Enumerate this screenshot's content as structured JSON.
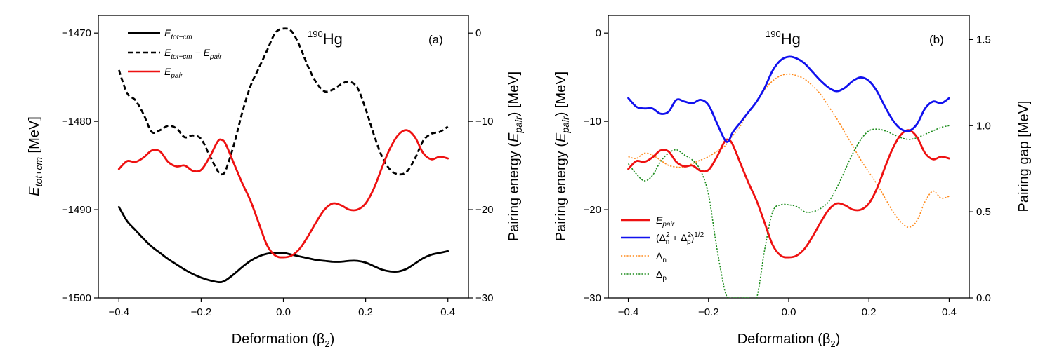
{
  "chart_data": [
    {
      "panel": "(a)",
      "nucleus": {
        "mass": "190",
        "symbol": "Hg"
      },
      "type": "line",
      "xlabel": {
        "main": "Deformation (β",
        "sub": "2",
        "end": ")"
      },
      "xlim": [
        -0.45,
        0.45
      ],
      "xticks": [
        "−0.4",
        "−0.2",
        "0.0",
        "0.2",
        "0.4"
      ],
      "y_left": {
        "label": {
          "main": "E",
          "sub": "tot+cm",
          "end": " [MeV]"
        },
        "lim": [
          -1500,
          -1468
        ],
        "ticks": [
          "−1500",
          "−1490",
          "−1480",
          "−1470"
        ]
      },
      "y_right": {
        "label": {
          "main": "Pairing energy (",
          "italic": "E",
          "sub": "pair",
          "end": ") [MeV]"
        },
        "lim": [
          -30,
          2
        ],
        "ticks": [
          "−30",
          "−20",
          "−10",
          "0"
        ]
      },
      "legend": {
        "position": "top-left",
        "entries": [
          {
            "series": "etot",
            "main": "E",
            "sub": "tot+cm",
            "rest": ""
          },
          {
            "series": "etot_minus_epair",
            "main": "E",
            "sub": "tot+cm",
            "rest": " − E",
            "sub2": "pair"
          },
          {
            "series": "epair",
            "main": "E",
            "sub": "pair",
            "rest": ""
          }
        ]
      },
      "series": [
        {
          "id": "etot",
          "name": "E_tot+cm",
          "axis": "left",
          "color": "#000000",
          "style": "solid",
          "x": [
            -0.4,
            -0.38,
            -0.36,
            -0.34,
            -0.32,
            -0.3,
            -0.28,
            -0.26,
            -0.24,
            -0.22,
            -0.2,
            -0.18,
            -0.16,
            -0.15,
            -0.14,
            -0.12,
            -0.1,
            -0.08,
            -0.06,
            -0.04,
            -0.02,
            0.0,
            0.02,
            0.04,
            0.06,
            0.08,
            0.1,
            0.12,
            0.14,
            0.16,
            0.18,
            0.2,
            0.22,
            0.24,
            0.26,
            0.28,
            0.3,
            0.32,
            0.34,
            0.36,
            0.38,
            0.4
          ],
          "y": [
            -1489.7,
            -1491.3,
            -1492.3,
            -1493.3,
            -1494.2,
            -1494.9,
            -1495.6,
            -1496.2,
            -1496.8,
            -1497.3,
            -1497.7,
            -1498.0,
            -1498.2,
            -1498.2,
            -1498.0,
            -1497.3,
            -1496.5,
            -1495.8,
            -1495.3,
            -1495.0,
            -1494.9,
            -1494.9,
            -1495.1,
            -1495.3,
            -1495.5,
            -1495.7,
            -1495.8,
            -1495.9,
            -1495.9,
            -1495.8,
            -1495.8,
            -1496.0,
            -1496.4,
            -1496.8,
            -1497.0,
            -1497.0,
            -1496.7,
            -1496.1,
            -1495.5,
            -1495.1,
            -1494.9,
            -1494.7
          ]
        },
        {
          "id": "etot_minus_epair",
          "name": "E_tot+cm − E_pair",
          "axis": "left",
          "color": "#000000",
          "style": "dashed",
          "x": [
            -0.4,
            -0.38,
            -0.36,
            -0.34,
            -0.32,
            -0.3,
            -0.28,
            -0.26,
            -0.24,
            -0.22,
            -0.2,
            -0.18,
            -0.16,
            -0.15,
            -0.14,
            -0.12,
            -0.1,
            -0.08,
            -0.06,
            -0.04,
            -0.02,
            0.0,
            0.02,
            0.04,
            0.06,
            0.08,
            0.1,
            0.12,
            0.14,
            0.16,
            0.18,
            0.2,
            0.22,
            0.24,
            0.26,
            0.28,
            0.3,
            0.32,
            0.34,
            0.36,
            0.38,
            0.4
          ],
          "y": [
            -1474.2,
            -1476.8,
            -1477.6,
            -1479.2,
            -1481.2,
            -1481.0,
            -1480.5,
            -1480.8,
            -1481.8,
            -1481.6,
            -1482.0,
            -1483.8,
            -1485.6,
            -1486.0,
            -1485.5,
            -1482.6,
            -1479.0,
            -1476.0,
            -1474.0,
            -1472.0,
            -1470.0,
            -1469.5,
            -1469.8,
            -1471.5,
            -1473.8,
            -1475.6,
            -1476.6,
            -1476.4,
            -1475.8,
            -1475.5,
            -1476.2,
            -1478.6,
            -1481.5,
            -1484.0,
            -1485.5,
            -1486.0,
            -1485.7,
            -1484.2,
            -1482.2,
            -1481.4,
            -1481.2,
            -1480.6
          ]
        },
        {
          "id": "epair",
          "name": "E_pair",
          "axis": "right",
          "color": "#ee1111",
          "style": "solid",
          "x": [
            -0.4,
            -0.38,
            -0.36,
            -0.34,
            -0.32,
            -0.3,
            -0.28,
            -0.26,
            -0.24,
            -0.22,
            -0.2,
            -0.18,
            -0.16,
            -0.15,
            -0.14,
            -0.12,
            -0.1,
            -0.08,
            -0.06,
            -0.04,
            -0.02,
            0.0,
            0.02,
            0.04,
            0.06,
            0.08,
            0.1,
            0.12,
            0.14,
            0.16,
            0.18,
            0.2,
            0.22,
            0.24,
            0.26,
            0.28,
            0.3,
            0.32,
            0.34,
            0.36,
            0.38,
            0.4
          ],
          "y": [
            -15.4,
            -14.5,
            -14.6,
            -14.1,
            -13.3,
            -13.4,
            -14.6,
            -15.1,
            -15.0,
            -15.6,
            -15.5,
            -14.1,
            -12.3,
            -12.1,
            -12.6,
            -14.8,
            -17.0,
            -19.0,
            -21.5,
            -24.0,
            -25.2,
            -25.4,
            -25.2,
            -24.4,
            -23.0,
            -21.4,
            -20.0,
            -19.3,
            -19.5,
            -20.0,
            -20.0,
            -19.3,
            -17.6,
            -15.2,
            -13.0,
            -11.5,
            -11.0,
            -11.8,
            -13.6,
            -14.3,
            -14.0,
            -14.2
          ]
        }
      ]
    },
    {
      "panel": "(b)",
      "nucleus": {
        "mass": "190",
        "symbol": "Hg"
      },
      "type": "line",
      "xlabel": {
        "main": "Deformation (β",
        "sub": "2",
        "end": ")"
      },
      "xlim": [
        -0.45,
        0.45
      ],
      "xticks": [
        "−0.4",
        "−0.2",
        "0.0",
        "0.2",
        "0.4"
      ],
      "y_left": {
        "label": {
          "main": "Pairing energy (",
          "italic": "E",
          "sub": "pair",
          "end": ") [MeV]"
        },
        "lim": [
          -30,
          2
        ],
        "ticks": [
          "−30",
          "−20",
          "−10",
          "0"
        ]
      },
      "y_right": {
        "label": {
          "main": "Pairing gap [MeV]"
        },
        "lim": [
          0,
          1.64
        ],
        "ticks": [
          "0.0",
          "0.5",
          "1.0",
          "1.5"
        ]
      },
      "legend": {
        "position": "bottom-left",
        "entries": [
          {
            "series": "epair_b",
            "kind": "epair",
            "main": "E",
            "sub": "pair"
          },
          {
            "series": "gap_total",
            "kind": "total",
            "text": "(Δ + Δ)"
          },
          {
            "series": "gap_n",
            "kind": "delta",
            "main": "Δ",
            "sub": "n"
          },
          {
            "series": "gap_p",
            "kind": "delta",
            "main": "Δ",
            "sub": "p"
          }
        ]
      },
      "series": [
        {
          "id": "epair_b",
          "name": "E_pair",
          "axis": "left",
          "color": "#ee1111",
          "style": "solid",
          "x": [
            -0.4,
            -0.38,
            -0.36,
            -0.34,
            -0.32,
            -0.3,
            -0.28,
            -0.26,
            -0.24,
            -0.22,
            -0.2,
            -0.18,
            -0.16,
            -0.15,
            -0.14,
            -0.12,
            -0.1,
            -0.08,
            -0.06,
            -0.04,
            -0.02,
            0.0,
            0.02,
            0.04,
            0.06,
            0.08,
            0.1,
            0.12,
            0.14,
            0.16,
            0.18,
            0.2,
            0.22,
            0.24,
            0.26,
            0.28,
            0.3,
            0.32,
            0.34,
            0.36,
            0.38,
            0.4
          ],
          "y": [
            -15.4,
            -14.5,
            -14.6,
            -14.1,
            -13.3,
            -13.4,
            -14.6,
            -15.1,
            -15.0,
            -15.6,
            -15.5,
            -14.1,
            -12.3,
            -12.1,
            -12.6,
            -14.8,
            -17.0,
            -19.0,
            -21.5,
            -24.0,
            -25.2,
            -25.4,
            -25.2,
            -24.4,
            -23.0,
            -21.4,
            -20.0,
            -19.3,
            -19.5,
            -20.0,
            -20.0,
            -19.3,
            -17.6,
            -15.2,
            -13.0,
            -11.5,
            -11.0,
            -11.8,
            -13.6,
            -14.3,
            -14.0,
            -14.2
          ]
        },
        {
          "id": "gap_total",
          "name": "(Δn² + Δp²)^1/2",
          "axis": "right",
          "color": "#1111ee",
          "style": "solid",
          "x": [
            -0.4,
            -0.38,
            -0.36,
            -0.34,
            -0.32,
            -0.3,
            -0.28,
            -0.26,
            -0.24,
            -0.22,
            -0.2,
            -0.18,
            -0.16,
            -0.15,
            -0.14,
            -0.12,
            -0.1,
            -0.08,
            -0.06,
            -0.04,
            -0.02,
            0.0,
            0.02,
            0.04,
            0.06,
            0.08,
            0.1,
            0.12,
            0.14,
            0.16,
            0.18,
            0.2,
            0.22,
            0.24,
            0.26,
            0.28,
            0.3,
            0.32,
            0.34,
            0.36,
            0.38,
            0.4
          ],
          "y": [
            1.16,
            1.11,
            1.1,
            1.1,
            1.07,
            1.08,
            1.15,
            1.14,
            1.13,
            1.15,
            1.12,
            1.02,
            0.92,
            0.91,
            0.96,
            1.02,
            1.08,
            1.14,
            1.22,
            1.32,
            1.38,
            1.4,
            1.39,
            1.36,
            1.31,
            1.26,
            1.22,
            1.2,
            1.22,
            1.26,
            1.28,
            1.26,
            1.2,
            1.11,
            1.03,
            0.98,
            0.97,
            1.01,
            1.1,
            1.14,
            1.13,
            1.16
          ]
        },
        {
          "id": "gap_n",
          "name": "Δn",
          "axis": "right",
          "color": "#ff8a1c",
          "style": "dotted",
          "x": [
            -0.4,
            -0.38,
            -0.36,
            -0.34,
            -0.32,
            -0.3,
            -0.28,
            -0.26,
            -0.24,
            -0.22,
            -0.2,
            -0.18,
            -0.16,
            -0.15,
            -0.14,
            -0.12,
            -0.1,
            -0.08,
            -0.06,
            -0.04,
            -0.02,
            0.0,
            0.02,
            0.04,
            0.06,
            0.08,
            0.1,
            0.12,
            0.14,
            0.16,
            0.18,
            0.2,
            0.22,
            0.24,
            0.26,
            0.28,
            0.3,
            0.32,
            0.34,
            0.36,
            0.38,
            0.4
          ],
          "y": [
            0.82,
            0.81,
            0.84,
            0.83,
            0.8,
            0.77,
            0.76,
            0.76,
            0.78,
            0.8,
            0.82,
            0.85,
            0.88,
            0.91,
            0.94,
            1.0,
            1.08,
            1.14,
            1.21,
            1.26,
            1.29,
            1.3,
            1.29,
            1.27,
            1.23,
            1.18,
            1.11,
            1.04,
            0.96,
            0.88,
            0.8,
            0.73,
            0.66,
            0.58,
            0.5,
            0.44,
            0.41,
            0.45,
            0.56,
            0.62,
            0.58,
            0.59
          ]
        },
        {
          "id": "gap_p",
          "name": "Δp",
          "axis": "right",
          "color": "#1c8c1c",
          "style": "dotted",
          "x": [
            -0.4,
            -0.38,
            -0.36,
            -0.34,
            -0.32,
            -0.3,
            -0.28,
            -0.26,
            -0.24,
            -0.22,
            -0.2,
            -0.18,
            -0.16,
            -0.15,
            -0.14,
            -0.12,
            -0.1,
            -0.08,
            -0.06,
            -0.04,
            -0.02,
            0.0,
            0.02,
            0.04,
            0.06,
            0.08,
            0.1,
            0.12,
            0.14,
            0.16,
            0.18,
            0.2,
            0.22,
            0.24,
            0.26,
            0.28,
            0.3,
            0.32,
            0.34,
            0.36,
            0.38,
            0.4
          ],
          "y": [
            0.78,
            0.72,
            0.68,
            0.71,
            0.79,
            0.84,
            0.86,
            0.83,
            0.8,
            0.74,
            0.6,
            0.3,
            0.05,
            0.0,
            0.0,
            0.0,
            0.0,
            0.0,
            0.28,
            0.5,
            0.54,
            0.54,
            0.53,
            0.5,
            0.5,
            0.52,
            0.56,
            0.64,
            0.74,
            0.84,
            0.92,
            0.97,
            0.98,
            0.97,
            0.95,
            0.93,
            0.92,
            0.93,
            0.95,
            0.97,
            0.99,
            1.0
          ]
        }
      ]
    }
  ]
}
